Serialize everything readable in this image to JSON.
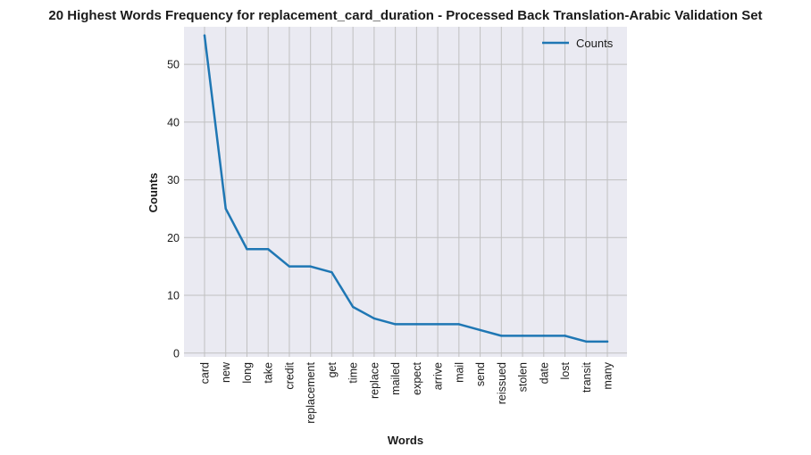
{
  "chart_data": {
    "type": "line",
    "title": "20 Highest Words Frequency for replacement_card_duration - Processed Back Translation-Arabic Validation Set",
    "xlabel": "Words",
    "ylabel": "Counts",
    "categories": [
      "card",
      "new",
      "long",
      "take",
      "credit",
      "replacement",
      "get",
      "time",
      "replace",
      "mailed",
      "expect",
      "arrive",
      "mail",
      "send",
      "reissued",
      "stolen",
      "date",
      "lost",
      "transit",
      "many"
    ],
    "series": [
      {
        "name": "Counts",
        "color": "#1f77b4",
        "values": [
          55,
          25,
          18,
          18,
          15,
          15,
          14,
          8,
          6,
          5,
          5,
          5,
          5,
          4,
          3,
          3,
          3,
          3,
          2,
          2
        ]
      }
    ],
    "ylim": [
      -0.65,
      56.5
    ],
    "yticks": [
      0,
      10,
      20,
      30,
      40,
      50
    ],
    "grid": true,
    "legend": "top-right",
    "background_color": "#eaeaf2",
    "grid_color": "#c0c0c0"
  }
}
